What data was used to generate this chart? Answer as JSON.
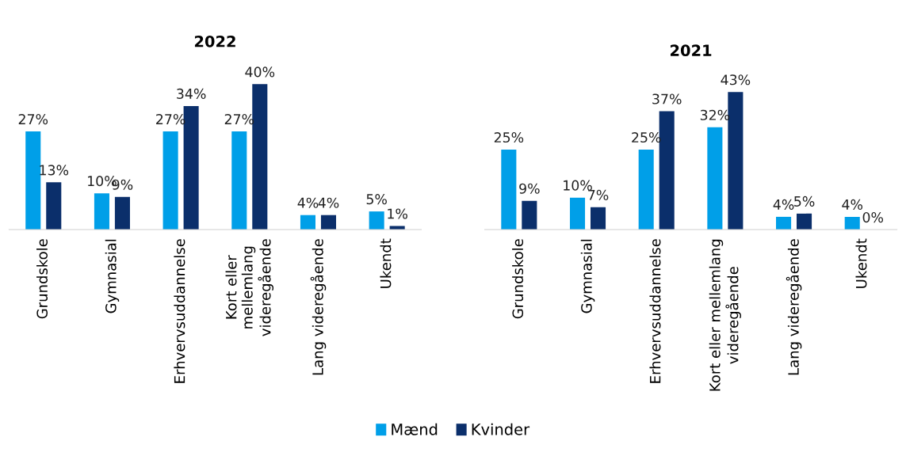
{
  "chart_data": [
    {
      "type": "bar",
      "title": "2022",
      "categories": [
        "Grundskole",
        "Gymnasial",
        "Erhvervsuddannelse",
        "Kort eller\nmellemlang\nvideregående",
        "Lang videregående",
        "Ukendt"
      ],
      "series": [
        {
          "name": "Mænd",
          "color": "#009fe8",
          "values": [
            27,
            10,
            27,
            27,
            4,
            5
          ],
          "value_labels": [
            "27%",
            "10%",
            "27%",
            "27%",
            "4%",
            "5%"
          ]
        },
        {
          "name": "Kvinder",
          "color": "#0b2f6b",
          "values": [
            13,
            9,
            34,
            40,
            4,
            1
          ],
          "value_labels": [
            "13%",
            "9%",
            "34%",
            "40%",
            "4%",
            "1%"
          ]
        }
      ],
      "legend": "bottom"
    },
    {
      "type": "bar",
      "title": "2021",
      "categories": [
        "Grundskole",
        "Gymnasial",
        "Erhvervsuddannelse",
        "Kort eller mellemlang\nvideregående",
        "Lang videregående",
        "Ukendt"
      ],
      "series": [
        {
          "name": "Mænd",
          "color": "#009fe8",
          "values": [
            25,
            10,
            25,
            32,
            4,
            4
          ],
          "value_labels": [
            "25%",
            "10%",
            "25%",
            "32%",
            "4%",
            "4%"
          ]
        },
        {
          "name": "Kvinder",
          "color": "#0b2f6b",
          "values": [
            9,
            7,
            37,
            43,
            5,
            0
          ],
          "value_labels": [
            "9%",
            "7%",
            "37%",
            "43%",
            "5%",
            "0%"
          ]
        }
      ],
      "legend": "bottom"
    }
  ]
}
